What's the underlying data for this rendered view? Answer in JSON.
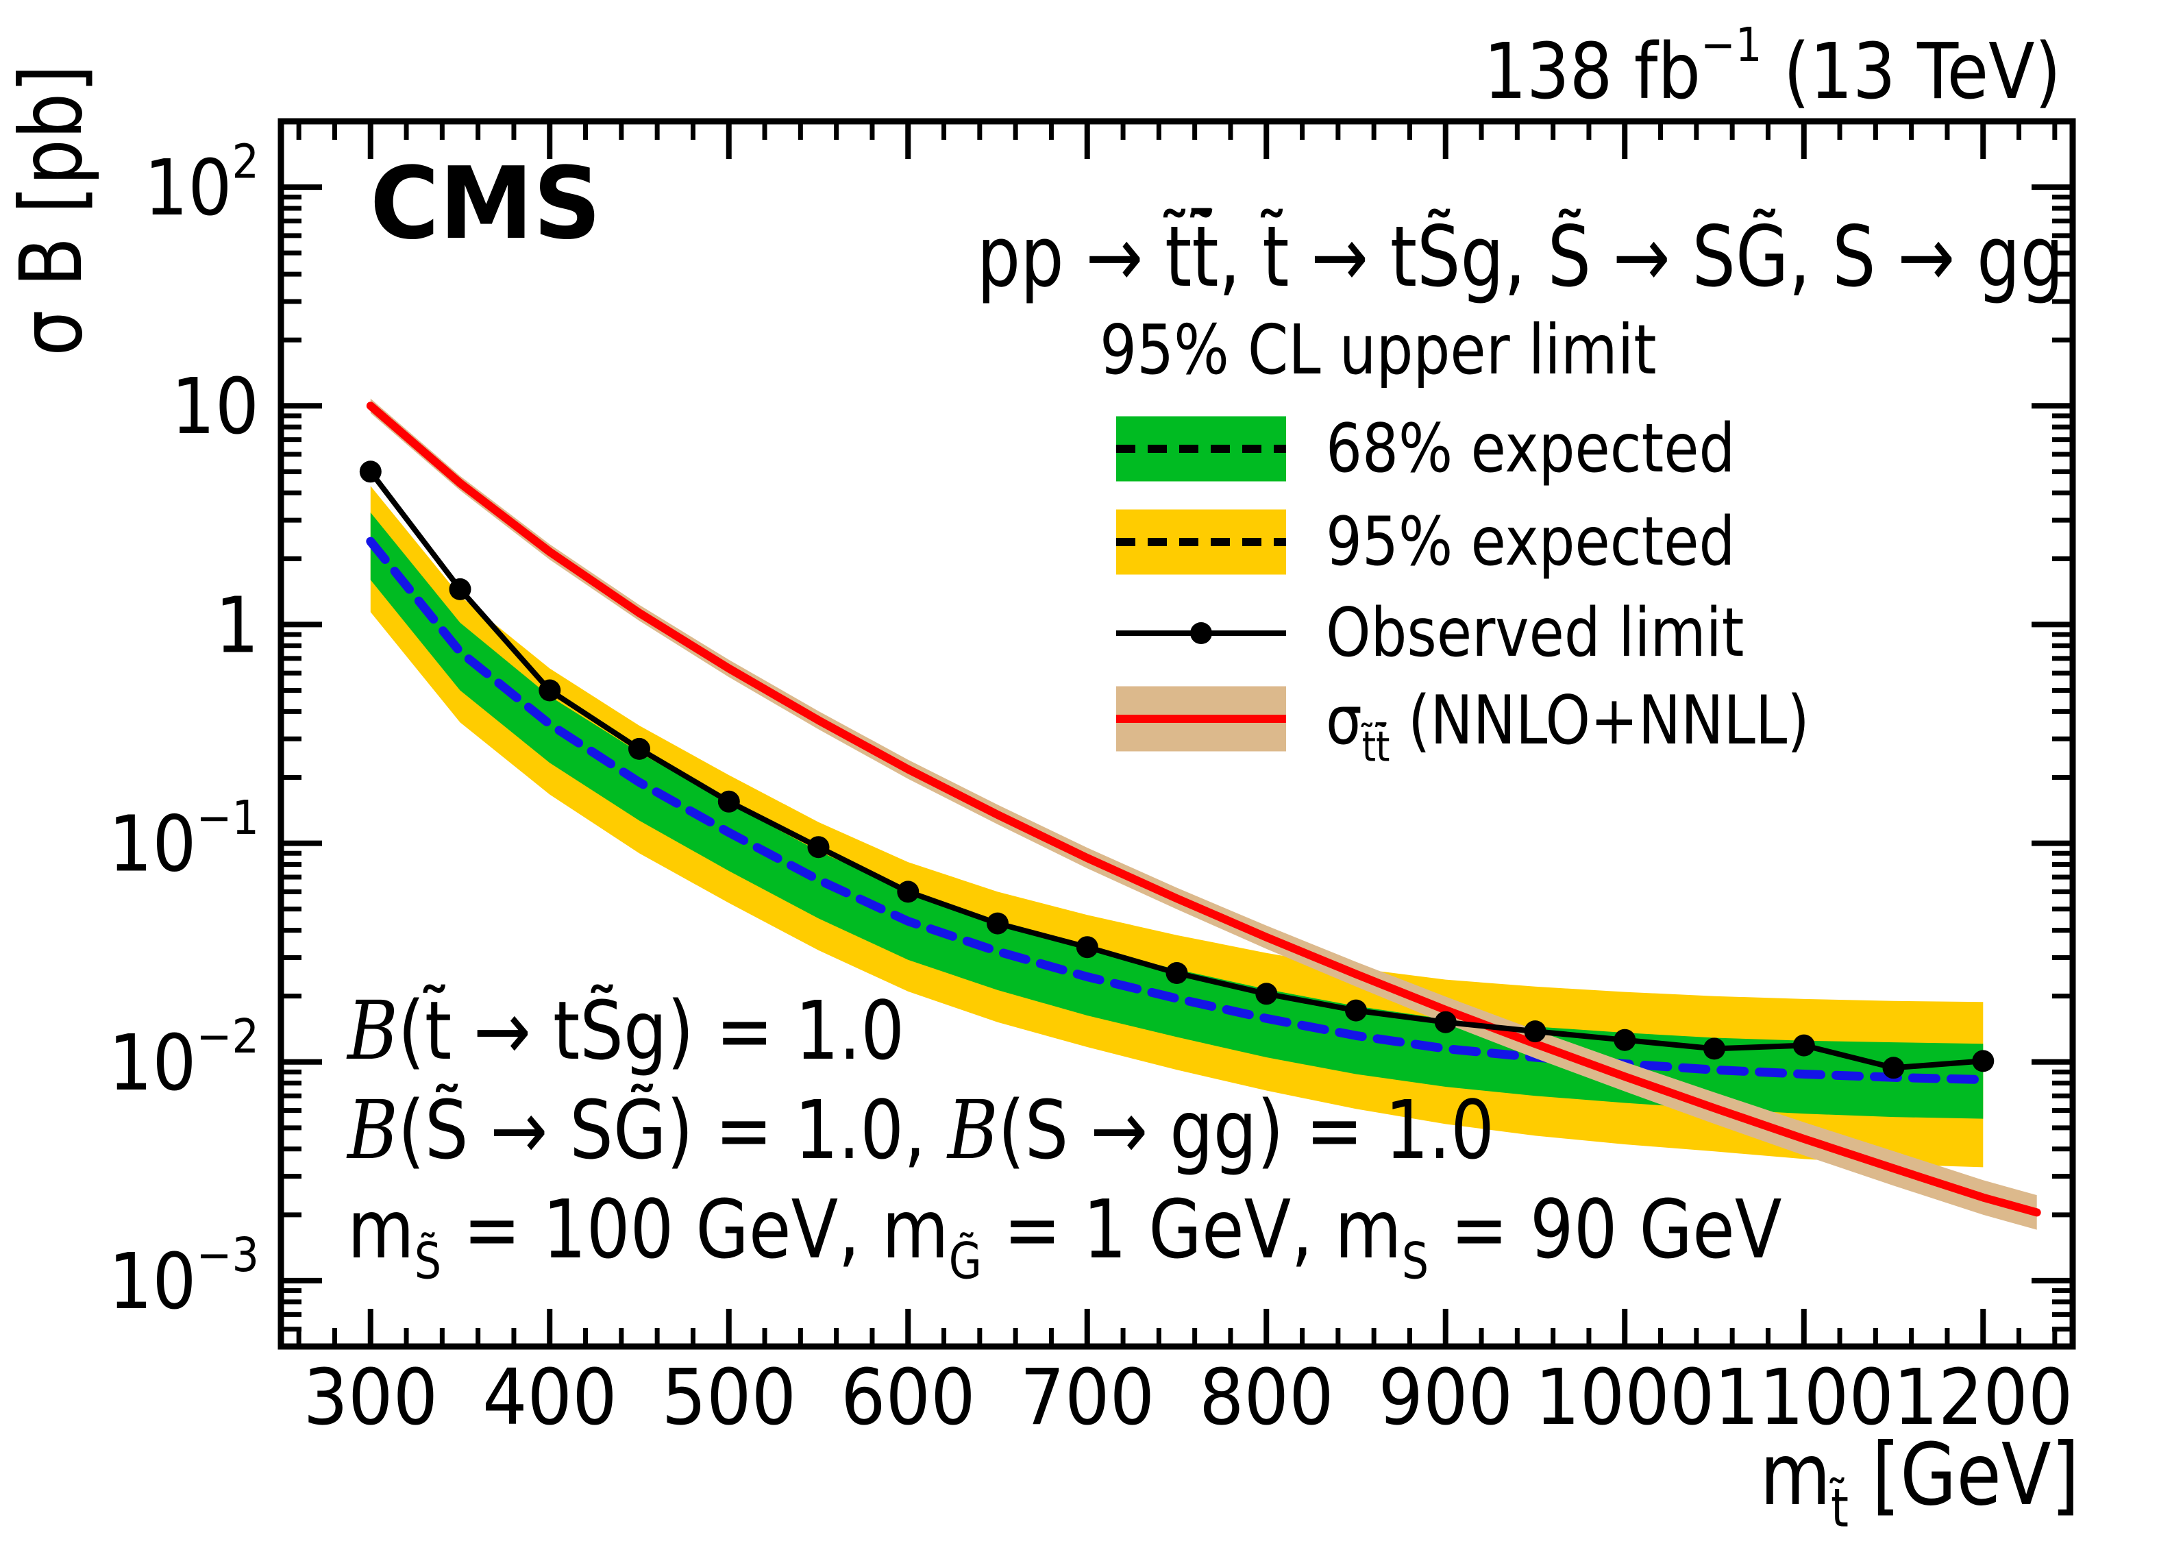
{
  "header": {
    "cms": "CMS",
    "lumi": "138 fb^{−1} (13 TeV)",
    "process": "pp → t̃t̃̄, t̃ → tS̃g, S̃ → SG̃, S → gg"
  },
  "legend": {
    "header": "95% CL upper limit",
    "items": [
      {
        "label": "68% expected",
        "swatch": "green-band"
      },
      {
        "label": "95% expected",
        "swatch": "yellow-band"
      },
      {
        "label": "Observed limit",
        "swatch": "line-dot"
      },
      {
        "label": "σ_{t̃t̃̄} (NNLO+NNLL)",
        "swatch": "theory-band"
      }
    ]
  },
  "annotations": [
    "*{B}(t̃ → tS̃g) = 1.0",
    "*{B}(S̃ → SG̃) = 1.0, *{B}(S → gg) = 1.0",
    "m_{S̃} = 100 GeV, m_{G̃} = 1 GeV, m_{S} = 90 GeV"
  ],
  "chart_data": {
    "type": "line",
    "title": "95% CL upper limit on σB vs stop mass",
    "xlabel": "m_{t̃} [GeV]",
    "ylabel": "σ B [pb]",
    "xlim": [
      250,
      1250
    ],
    "ylim": [
      0.0005,
      200
    ],
    "yscale": "log",
    "grid": false,
    "legend_position": "upper right",
    "x_ticks": [
      300,
      400,
      500,
      600,
      700,
      800,
      900,
      1000,
      1100,
      1200
    ],
    "x_minor_step": 20,
    "y_ticks": [
      {
        "v": 100,
        "label": "10^{2}"
      },
      {
        "v": 10,
        "label": "10"
      },
      {
        "v": 1,
        "label": "1"
      },
      {
        "v": 0.1,
        "label": "10^{−1}"
      },
      {
        "v": 0.01,
        "label": "10^{−2}"
      },
      {
        "v": 0.001,
        "label": "10^{−3}"
      }
    ],
    "masses": [
      300,
      350,
      400,
      450,
      500,
      550,
      600,
      650,
      700,
      750,
      800,
      850,
      900,
      950,
      1000,
      1050,
      1100,
      1150,
      1200
    ],
    "series": [
      {
        "name": "95% expected band",
        "type": "band",
        "color": "#ffcc00",
        "up": [
          4.3,
          1.35,
          0.63,
          0.345,
          0.205,
          0.125,
          0.082,
          0.06,
          0.047,
          0.038,
          0.0315,
          0.0268,
          0.0238,
          0.0221,
          0.0209,
          0.02,
          0.0194,
          0.019,
          0.0188
        ],
        "down": [
          1.14,
          0.357,
          0.167,
          0.09,
          0.0533,
          0.0324,
          0.021,
          0.0152,
          0.0117,
          0.0092,
          0.0074,
          0.0061,
          0.0052,
          0.0046,
          0.0042,
          0.0039,
          0.0036,
          0.0034,
          0.0033
        ]
      },
      {
        "name": "68% expected band",
        "type": "band",
        "color": "#00bb22",
        "up": [
          3.25,
          1.02,
          0.47,
          0.26,
          0.152,
          0.092,
          0.06,
          0.0435,
          0.0333,
          0.0265,
          0.0215,
          0.018,
          0.0157,
          0.0145,
          0.0136,
          0.0129,
          0.0125,
          0.0123,
          0.0121
        ],
        "down": [
          1.6,
          0.5,
          0.233,
          0.127,
          0.0747,
          0.0453,
          0.0293,
          0.0213,
          0.0163,
          0.013,
          0.0105,
          0.0088,
          0.0077,
          0.007,
          0.0065,
          0.0061,
          0.0058,
          0.0056,
          0.0055
        ]
      },
      {
        "name": "Expected limit",
        "type": "line",
        "color": "#1414e8",
        "width": 13,
        "dash": [
          34,
          22
        ],
        "values": [
          2.4,
          0.75,
          0.35,
          0.19,
          0.112,
          0.068,
          0.044,
          0.032,
          0.0245,
          0.0195,
          0.0158,
          0.0132,
          0.0115,
          0.0105,
          0.0098,
          0.0092,
          0.0088,
          0.0085,
          0.0083
        ]
      },
      {
        "name": "Theory band",
        "type": "band",
        "color": "#dcb98c",
        "x": [
          300,
          350,
          400,
          450,
          500,
          550,
          600,
          650,
          700,
          750,
          800,
          850,
          900,
          950,
          1000,
          1050,
          1100,
          1150,
          1200,
          1230
        ],
        "up": [
          10.8,
          4.78,
          2.33,
          1.23,
          0.69,
          0.402,
          0.241,
          0.15,
          0.0954,
          0.0626,
          0.042,
          0.0287,
          0.0199,
          0.014,
          0.01,
          0.00726,
          0.0053,
          0.00391,
          0.00288,
          0.00246
        ],
        "down": [
          9.26,
          4.1,
          1.98,
          1.04,
          0.575,
          0.332,
          0.197,
          0.122,
          0.0768,
          0.0499,
          0.0329,
          0.0221,
          0.015,
          0.0104,
          0.00733,
          0.00521,
          0.00374,
          0.00272,
          0.002,
          0.00171
        ]
      },
      {
        "name": "Theory (NNLO+NNLL)",
        "type": "line",
        "color": "#ff0000",
        "width": 12,
        "x": [
          300,
          350,
          400,
          450,
          500,
          550,
          600,
          650,
          700,
          750,
          800,
          850,
          900,
          950,
          1000,
          1050,
          1100,
          1150,
          1200,
          1230
        ],
        "values": [
          10.0,
          4.43,
          2.15,
          1.13,
          0.63,
          0.365,
          0.218,
          0.135,
          0.0856,
          0.0559,
          0.0372,
          0.0252,
          0.0173,
          0.0121,
          0.00857,
          0.00615,
          0.00445,
          0.00326,
          0.0024,
          0.00205
        ]
      },
      {
        "name": "Observed limit",
        "type": "line+marker",
        "color": "#000000",
        "width": 8,
        "marker_r": 16,
        "values": [
          5.0,
          1.45,
          0.5,
          0.27,
          0.155,
          0.096,
          0.06,
          0.043,
          0.0335,
          0.0255,
          0.0205,
          0.0172,
          0.0152,
          0.0138,
          0.0126,
          0.0115,
          0.0119,
          0.0094,
          0.0101
        ]
      }
    ]
  }
}
